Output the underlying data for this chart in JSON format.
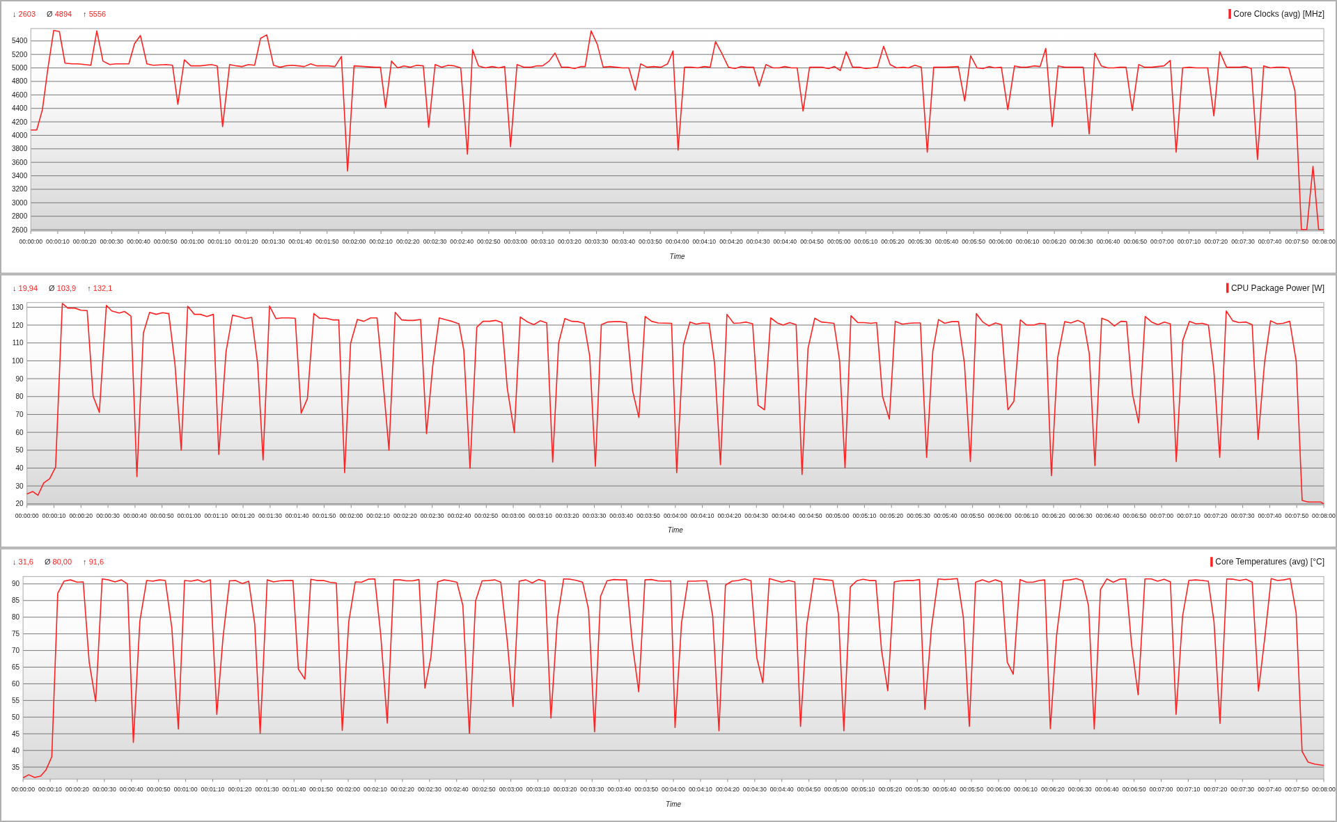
{
  "chart_data": [
    {
      "type": "line",
      "xlabel": "Time",
      "legend": "top right",
      "grid": "y",
      "annotations": [
        "↓ 2603",
        "Ø 4894",
        "↑ 5556"
      ],
      "xlim": [
        0,
        480
      ],
      "ylim": [
        2580,
        5584
      ],
      "yticks": [
        2600,
        2800,
        3000,
        3200,
        3400,
        3600,
        3800,
        4000,
        4200,
        4400,
        4600,
        4800,
        5000,
        5200,
        5400
      ],
      "xticks": [
        {
          "value": 0,
          "label": "00:00:00"
        },
        {
          "value": 10,
          "label": "00:00:10"
        },
        {
          "value": 20,
          "label": "00:00:20"
        },
        {
          "value": 30,
          "label": "00:00:30"
        },
        {
          "value": 40,
          "label": "00:00:40"
        },
        {
          "value": 50,
          "label": "00:00:50"
        },
        {
          "value": 60,
          "label": "00:01:00"
        },
        {
          "value": 70,
          "label": "00:01:10"
        },
        {
          "value": 80,
          "label": "00:01:20"
        },
        {
          "value": 90,
          "label": "00:01:30"
        },
        {
          "value": 100,
          "label": "00:01:40"
        },
        {
          "value": 110,
          "label": "00:01:50"
        },
        {
          "value": 120,
          "label": "00:02:00"
        },
        {
          "value": 130,
          "label": "00:02:10"
        },
        {
          "value": 140,
          "label": "00:02:20"
        },
        {
          "value": 150,
          "label": "00:02:30"
        },
        {
          "value": 160,
          "label": "00:02:40"
        },
        {
          "value": 170,
          "label": "00:02:50"
        },
        {
          "value": 180,
          "label": "00:03:00"
        },
        {
          "value": 190,
          "label": "00:03:10"
        },
        {
          "value": 200,
          "label": "00:03:20"
        },
        {
          "value": 210,
          "label": "00:03:30"
        },
        {
          "value": 220,
          "label": "00:03:40"
        },
        {
          "value": 230,
          "label": "00:03:50"
        },
        {
          "value": 240,
          "label": "00:04:00"
        },
        {
          "value": 250,
          "label": "00:04:10"
        },
        {
          "value": 260,
          "label": "00:04:20"
        },
        {
          "value": 270,
          "label": "00:04:30"
        },
        {
          "value": 280,
          "label": "00:04:40"
        },
        {
          "value": 290,
          "label": "00:04:50"
        },
        {
          "value": 300,
          "label": "00:05:00"
        },
        {
          "value": 310,
          "label": "00:05:10"
        },
        {
          "value": 320,
          "label": "00:05:20"
        },
        {
          "value": 330,
          "label": "00:05:30"
        },
        {
          "value": 340,
          "label": "00:05:40"
        },
        {
          "value": 350,
          "label": "00:05:50"
        },
        {
          "value": 360,
          "label": "00:06:00"
        },
        {
          "value": 370,
          "label": "00:06:10"
        },
        {
          "value": 380,
          "label": "00:06:20"
        },
        {
          "value": 390,
          "label": "00:06:30"
        },
        {
          "value": 400,
          "label": "00:06:40"
        },
        {
          "value": 410,
          "label": "00:06:50"
        },
        {
          "value": 420,
          "label": "00:07:00"
        },
        {
          "value": 430,
          "label": "00:07:10"
        },
        {
          "value": 440,
          "label": "00:07:20"
        },
        {
          "value": 450,
          "label": "00:07:30"
        },
        {
          "value": 460,
          "label": "00:07:40"
        },
        {
          "value": 470,
          "label": "00:07:50"
        },
        {
          "value": 480,
          "label": "00:08:00"
        }
      ],
      "series": [
        {
          "name": "Core Clocks (avg) [MHz]",
          "color": "#ff2020",
          "x": [
            0,
            2.2,
            4.3,
            6.3,
            8.5,
            10.6,
            12.7,
            15.4,
            17.7,
            22.3,
            24.5,
            26.8,
            29.3,
            31.5,
            36.4,
            38.5,
            40.7,
            43.1,
            45.4,
            50.2,
            52.6,
            54.6,
            57,
            59.4,
            62.9,
            67,
            69.2,
            71.2,
            73.8,
            76.3,
            78.4,
            80.8,
            83.1,
            85.3,
            87.6,
            90.1,
            92.5,
            94.5,
            96.9,
            99.3,
            101.5,
            103.9,
            106.2,
            110.4,
            112.9,
            115.3,
            117.6,
            120,
            127.8,
            129.8,
            131.7,
            133.9,
            136.2,
            138.5,
            140.9,
            143.3,
            145.7,
            147.7,
            150.1,
            152.5,
            155,
            157.2,
            159.6,
            162.1,
            164,
            166.2,
            168.8,
            171.3,
            173.7,
            175.9,
            178.1,
            180.5,
            183,
            185.6,
            187.8,
            190,
            192.4,
            194.6,
            197,
            199.5,
            201.9,
            204.1,
            205.8,
            208,
            210.3,
            212.5,
            214.9,
            217.4,
            219.6,
            222,
            224.4,
            226.4,
            228.8,
            231.2,
            233.9,
            236.4,
            238.4,
            240.3,
            242.7,
            245.2,
            247.6,
            250,
            252.2,
            254.2,
            256.6,
            259,
            261.4,
            263.6,
            266,
            268.3,
            270.4,
            272.9,
            275.5,
            277.8,
            279.9,
            282.3,
            284.5,
            286.7,
            289.1,
            291.5,
            293.7,
            296.1,
            298.4,
            300.5,
            302.7,
            305.1,
            307.6,
            310,
            312.2,
            314.3,
            316.6,
            319,
            321.4,
            323.8,
            325.8,
            328.2,
            330.6,
            332.8,
            335.2,
            339.9,
            344.3,
            346.7,
            348.9,
            351.3,
            353.5,
            355.7,
            357.8,
            360.3,
            362.7,
            365.2,
            367.5,
            369.8,
            372.4,
            374.7,
            376.8,
            379.2,
            381.4,
            383.8,
            386.3,
            388.5,
            390.7,
            392.9,
            395,
            397.4,
            399.8,
            402.1,
            404.2,
            406.6,
            408.9,
            411.3,
            413.5,
            416.1,
            418.3,
            420.7,
            423,
            425.2,
            427.6,
            430.2,
            432.5,
            434.7,
            436.9,
            439.2,
            441.4,
            443.9,
            446.3,
            448.8,
            451,
            453.1,
            455.4,
            457.7,
            460.1,
            462.5,
            464.8,
            467,
            469.3,
            471.7,
            473.7,
            476,
            478.1,
            480
          ],
          "values": [
            4080,
            4080,
            4380,
            4980,
            5556,
            5540,
            5070,
            5060,
            5060,
            5040,
            5550,
            5100,
            5050,
            5060,
            5060,
            5360,
            5480,
            5060,
            5040,
            5050,
            5040,
            4460,
            5120,
            5030,
            5030,
            5050,
            5030,
            4130,
            5050,
            5030,
            5020,
            5050,
            5040,
            5440,
            5490,
            5040,
            5010,
            5030,
            5040,
            5030,
            5020,
            5060,
            5030,
            5030,
            5020,
            5170,
            3470,
            5030,
            5010,
            5010,
            4410,
            5100,
            5000,
            5030,
            5010,
            5040,
            5030,
            4120,
            5050,
            5010,
            5040,
            5030,
            5000,
            3720,
            5270,
            5030,
            5000,
            5020,
            5000,
            5020,
            3830,
            5050,
            5010,
            5010,
            5030,
            5030,
            5100,
            5220,
            5010,
            5010,
            4990,
            5020,
            5020,
            5550,
            5350,
            5010,
            5020,
            5010,
            5000,
            5000,
            4670,
            5060,
            5010,
            5020,
            5010,
            5060,
            5250,
            3780,
            5010,
            5010,
            5000,
            5020,
            5010,
            5390,
            5210,
            5010,
            4990,
            5020,
            5010,
            5010,
            4730,
            5050,
            5000,
            5000,
            5020,
            5000,
            5000,
            4360,
            5010,
            5010,
            5010,
            4990,
            5020,
            4960,
            5240,
            5010,
            5010,
            4990,
            5000,
            5010,
            5320,
            5050,
            5000,
            5010,
            5000,
            5040,
            5010,
            3750,
            5010,
            5010,
            5020,
            4510,
            5180,
            5000,
            4990,
            5020,
            5000,
            5010,
            4380,
            5030,
            5010,
            5010,
            5030,
            5020,
            5290,
            4130,
            5030,
            5010,
            5010,
            5010,
            5010,
            4020,
            5220,
            5030,
            5000,
            5000,
            5010,
            5010,
            4370,
            5050,
            5010,
            5010,
            5020,
            5030,
            5110,
            3750,
            5000,
            5010,
            5000,
            5000,
            5000,
            4290,
            5240,
            5010,
            5010,
            5010,
            5020,
            4990,
            3640,
            5030,
            5000,
            5010,
            5010,
            5000,
            4660,
            2603,
            2603,
            3540,
            2603,
            2603
          ]
        }
      ]
    },
    {
      "type": "line",
      "xlabel": "Time",
      "legend": "top right",
      "grid": "y",
      "annotations": [
        "↓ 19,94",
        "Ø 103,9",
        "↑ 132,1"
      ],
      "xlim": [
        0,
        480
      ],
      "ylim": [
        19.3,
        132.6
      ],
      "yticks": [
        20,
        30,
        40,
        50,
        60,
        70,
        80,
        90,
        100,
        110,
        120,
        130
      ],
      "xticks": [
        {
          "value": 0,
          "label": "00:00:00"
        },
        {
          "value": 10,
          "label": "00:00:10"
        },
        {
          "value": 20,
          "label": "00:00:20"
        },
        {
          "value": 30,
          "label": "00:00:30"
        },
        {
          "value": 40,
          "label": "00:00:40"
        },
        {
          "value": 50,
          "label": "00:00:50"
        },
        {
          "value": 60,
          "label": "00:01:00"
        },
        {
          "value": 70,
          "label": "00:01:10"
        },
        {
          "value": 80,
          "label": "00:01:20"
        },
        {
          "value": 90,
          "label": "00:01:30"
        },
        {
          "value": 100,
          "label": "00:01:40"
        },
        {
          "value": 110,
          "label": "00:01:50"
        },
        {
          "value": 120,
          "label": "00:02:00"
        },
        {
          "value": 130,
          "label": "00:02:10"
        },
        {
          "value": 140,
          "label": "00:02:20"
        },
        {
          "value": 150,
          "label": "00:02:30"
        },
        {
          "value": 160,
          "label": "00:02:40"
        },
        {
          "value": 170,
          "label": "00:02:50"
        },
        {
          "value": 180,
          "label": "00:03:00"
        },
        {
          "value": 190,
          "label": "00:03:10"
        },
        {
          "value": 200,
          "label": "00:03:20"
        },
        {
          "value": 210,
          "label": "00:03:30"
        },
        {
          "value": 220,
          "label": "00:03:40"
        },
        {
          "value": 230,
          "label": "00:03:50"
        },
        {
          "value": 240,
          "label": "00:04:00"
        },
        {
          "value": 250,
          "label": "00:04:10"
        },
        {
          "value": 260,
          "label": "00:04:20"
        },
        {
          "value": 270,
          "label": "00:04:30"
        },
        {
          "value": 280,
          "label": "00:04:40"
        },
        {
          "value": 290,
          "label": "00:04:50"
        },
        {
          "value": 300,
          "label": "00:05:00"
        },
        {
          "value": 310,
          "label": "00:05:10"
        },
        {
          "value": 320,
          "label": "00:05:20"
        },
        {
          "value": 330,
          "label": "00:05:30"
        },
        {
          "value": 340,
          "label": "00:05:40"
        },
        {
          "value": 350,
          "label": "00:05:50"
        },
        {
          "value": 360,
          "label": "00:06:00"
        },
        {
          "value": 370,
          "label": "00:06:10"
        },
        {
          "value": 380,
          "label": "00:06:20"
        },
        {
          "value": 390,
          "label": "00:06:30"
        },
        {
          "value": 400,
          "label": "00:06:40"
        },
        {
          "value": 410,
          "label": "00:06:50"
        },
        {
          "value": 420,
          "label": "00:07:00"
        },
        {
          "value": 430,
          "label": "00:07:10"
        },
        {
          "value": 440,
          "label": "00:07:20"
        },
        {
          "value": 450,
          "label": "00:07:30"
        },
        {
          "value": 460,
          "label": "00:07:40"
        },
        {
          "value": 470,
          "label": "00:07:50"
        },
        {
          "value": 480,
          "label": "00:08:00"
        }
      ],
      "series": [
        {
          "name": "CPU Package Power [W]",
          "color": "#ff2020",
          "x": [
            0,
            2.1,
            4.1,
            6.2,
            8.4,
            10.6,
            13.1,
            15.1,
            17.7,
            20,
            22.3,
            24.5,
            26.8,
            29.4,
            31.4,
            34.2,
            36.1,
            38.5,
            40.7,
            43.1,
            45.4,
            47.8,
            50.2,
            52.5,
            54.8,
            57.1,
            59.5,
            62,
            64.2,
            66.6,
            69,
            71,
            73.7,
            76.1,
            78.3,
            80.8,
            83.2,
            85.4,
            87.4,
            89.8,
            92.2,
            94.2,
            96.9,
            99.3,
            101.5,
            103.8,
            106.2,
            108.4,
            110.8,
            113.1,
            115.4,
            117.6,
            119.8,
            122.3,
            124.7,
            127.2,
            129.6,
            131.6,
            134,
            136.3,
            138.7,
            141.1,
            143.1,
            145.7,
            147.9,
            150.2,
            152.6,
            155.1,
            157.3,
            159.9,
            161.7,
            164,
            166.5,
            168.8,
            171.2,
            173.5,
            175.8,
            177.8,
            180.4,
            182.6,
            185.1,
            187.6,
            190,
            192.4,
            194.6,
            196.8,
            199.1,
            201.7,
            204,
            206.2,
            208.3,
            210.4,
            212.6,
            214.9,
            217.3,
            219.7,
            221.9,
            224.2,
            226.5,
            228.8,
            231.2,
            233.6,
            238.6,
            240.5,
            243,
            245.4,
            247.7,
            250.1,
            252.5,
            254.5,
            256.7,
            259.1,
            261.6,
            264,
            266.2,
            268.6,
            270.6,
            273,
            275.3,
            277.7,
            279.9,
            282.3,
            284.7,
            286.9,
            289.1,
            291.6,
            294,
            296.3,
            298.7,
            300.8,
            302.8,
            305,
            307.5,
            309.9,
            312.3,
            314.5,
            316.7,
            319.2,
            321.4,
            324,
            326.3,
            328.5,
            330.7,
            333,
            335.3,
            337.4,
            339.7,
            342.3,
            344.8,
            347,
            349.2,
            351.4,
            353.8,
            356.1,
            358.5,
            360.7,
            363.1,
            365.3,
            367.7,
            370,
            372.7,
            374.9,
            377,
            379.2,
            381.5,
            384.1,
            386.4,
            389,
            391.2,
            393.2,
            395.3,
            397.8,
            400.2,
            402.5,
            404.9,
            407,
            409.2,
            411.5,
            413.9,
            416.3,
            418.6,
            421,
            423.2,
            425.4,
            427.8,
            430.3,
            432.7,
            435,
            437.3,
            439.3,
            441.5,
            443.9,
            446.3,
            448.6,
            451.2,
            453.5,
            455.7,
            458.1,
            460.3,
            462.7,
            464.9,
            467.4,
            469.8,
            472,
            474.2,
            478.9,
            480
          ],
          "values": [
            25.5,
            26.9,
            24.8,
            31.7,
            34.0,
            40.5,
            132.1,
            129.5,
            129.5,
            128.3,
            128.1,
            80.2,
            71.2,
            131.0,
            127.9,
            126.7,
            127.6,
            125.0,
            35.2,
            115.5,
            127.1,
            126.0,
            126.9,
            126.4,
            97.9,
            50.0,
            130.5,
            126.0,
            126.0,
            124.8,
            126.0,
            47.6,
            105.2,
            125.5,
            124.8,
            123.6,
            124.3,
            98.3,
            44.5,
            130.7,
            123.6,
            124.0,
            124.0,
            123.8,
            70.7,
            78.8,
            126.4,
            123.8,
            123.8,
            122.9,
            122.9,
            37.4,
            109.8,
            123.1,
            122.1,
            124.0,
            124.0,
            92.1,
            50.0,
            127.1,
            122.9,
            122.6,
            122.6,
            123.1,
            59.3,
            97.1,
            124.0,
            122.9,
            122.1,
            120.7,
            106.0,
            39.8,
            118.8,
            122.1,
            122.1,
            122.6,
            121.4,
            84.5,
            59.8,
            124.5,
            121.9,
            120.2,
            122.4,
            121.2,
            43.3,
            110.0,
            123.6,
            122.1,
            121.9,
            121.0,
            102.6,
            41.0,
            120.2,
            121.7,
            121.9,
            121.9,
            121.4,
            83.1,
            68.3,
            124.8,
            122.1,
            121.2,
            121.0,
            37.4,
            108.8,
            121.7,
            120.5,
            121.2,
            121.0,
            98.8,
            41.9,
            126.0,
            121.0,
            121.2,
            121.7,
            120.7,
            75.2,
            72.6,
            124.0,
            121.2,
            120.0,
            121.4,
            120.2,
            36.4,
            106.9,
            123.8,
            121.7,
            121.4,
            121.0,
            100.0,
            40.0,
            125.2,
            121.4,
            121.4,
            121.0,
            121.4,
            80.0,
            67.4,
            122.1,
            120.5,
            121.0,
            121.2,
            121.2,
            46.0,
            105.5,
            123.1,
            121.0,
            121.9,
            121.9,
            98.6,
            43.6,
            126.4,
            121.7,
            119.5,
            121.2,
            120.2,
            72.6,
            77.4,
            122.9,
            120.0,
            120.0,
            121.0,
            120.7,
            35.7,
            101.7,
            121.9,
            121.2,
            122.6,
            121.0,
            104.0,
            41.4,
            123.8,
            122.4,
            119.5,
            122.1,
            121.9,
            81.4,
            65.2,
            124.8,
            121.7,
            120.2,
            121.7,
            120.7,
            43.6,
            111.4,
            122.1,
            120.7,
            121.0,
            120.0,
            95.2,
            46.0,
            127.9,
            122.4,
            121.4,
            121.7,
            120.2,
            56.0,
            99.3,
            122.4,
            120.7,
            121.0,
            122.1,
            99.8,
            21.9,
            21.0,
            21.0,
            20.0
          ]
        }
      ]
    },
    {
      "type": "line",
      "xlabel": "Time",
      "legend": "top right",
      "grid": "y",
      "annotations": [
        "↓ 31,6",
        "Ø 80,00",
        "↑ 91,6"
      ],
      "xlim": [
        0,
        480
      ],
      "ylim": [
        31.4,
        92.2
      ],
      "yticks": [
        35,
        40,
        45,
        50,
        55,
        60,
        65,
        70,
        75,
        80,
        85,
        90
      ],
      "xticks": [
        {
          "value": 0,
          "label": "00:00:00"
        },
        {
          "value": 10,
          "label": "00:00:10"
        },
        {
          "value": 20,
          "label": "00:00:20"
        },
        {
          "value": 30,
          "label": "00:00:30"
        },
        {
          "value": 40,
          "label": "00:00:40"
        },
        {
          "value": 50,
          "label": "00:00:50"
        },
        {
          "value": 60,
          "label": "00:01:00"
        },
        {
          "value": 70,
          "label": "00:01:10"
        },
        {
          "value": 80,
          "label": "00:01:20"
        },
        {
          "value": 90,
          "label": "00:01:30"
        },
        {
          "value": 100,
          "label": "00:01:40"
        },
        {
          "value": 110,
          "label": "00:01:50"
        },
        {
          "value": 120,
          "label": "00:02:00"
        },
        {
          "value": 130,
          "label": "00:02:10"
        },
        {
          "value": 140,
          "label": "00:02:20"
        },
        {
          "value": 150,
          "label": "00:02:30"
        },
        {
          "value": 160,
          "label": "00:02:40"
        },
        {
          "value": 170,
          "label": "00:02:50"
        },
        {
          "value": 180,
          "label": "00:03:00"
        },
        {
          "value": 190,
          "label": "00:03:10"
        },
        {
          "value": 200,
          "label": "00:03:20"
        },
        {
          "value": 210,
          "label": "00:03:30"
        },
        {
          "value": 220,
          "label": "00:03:40"
        },
        {
          "value": 230,
          "label": "00:03:50"
        },
        {
          "value": 240,
          "label": "00:04:00"
        },
        {
          "value": 250,
          "label": "00:04:10"
        },
        {
          "value": 260,
          "label": "00:04:20"
        },
        {
          "value": 270,
          "label": "00:04:30"
        },
        {
          "value": 280,
          "label": "00:04:40"
        },
        {
          "value": 290,
          "label": "00:04:50"
        },
        {
          "value": 300,
          "label": "00:05:00"
        },
        {
          "value": 310,
          "label": "00:05:10"
        },
        {
          "value": 320,
          "label": "00:05:20"
        },
        {
          "value": 330,
          "label": "00:05:30"
        },
        {
          "value": 340,
          "label": "00:05:40"
        },
        {
          "value": 350,
          "label": "00:05:50"
        },
        {
          "value": 360,
          "label": "00:06:00"
        },
        {
          "value": 370,
          "label": "00:06:10"
        },
        {
          "value": 380,
          "label": "00:06:20"
        },
        {
          "value": 390,
          "label": "00:06:30"
        },
        {
          "value": 400,
          "label": "00:06:40"
        },
        {
          "value": 410,
          "label": "00:06:50"
        },
        {
          "value": 420,
          "label": "00:07:00"
        },
        {
          "value": 430,
          "label": "00:07:10"
        },
        {
          "value": 440,
          "label": "00:07:20"
        },
        {
          "value": 450,
          "label": "00:07:30"
        },
        {
          "value": 460,
          "label": "00:07:40"
        },
        {
          "value": 470,
          "label": "00:07:50"
        },
        {
          "value": 480,
          "label": "00:08:00"
        }
      ],
      "series": [
        {
          "name": "Core Temperatures (avg) [°C]",
          "color": "#ff2020",
          "x": [
            0,
            2.1,
            4.3,
            6.5,
            8.5,
            10.6,
            12.8,
            15.1,
            17.5,
            20,
            22.2,
            24.4,
            26.8,
            29.2,
            31.5,
            33.9,
            36.3,
            38.5,
            40.7,
            43.1,
            45.6,
            47.9,
            50.3,
            52.5,
            54.9,
            57.3,
            59.6,
            62,
            64.4,
            66.7,
            69.1,
            71.5,
            73.8,
            76.2,
            78.4,
            80.9,
            83.3,
            85.5,
            87.5,
            90.1,
            92.4,
            94.8,
            97.2,
            99.6,
            101.6,
            104,
            106.2,
            108.5,
            110.9,
            113.2,
            115.6,
            117.8,
            120.2,
            122.6,
            124.9,
            127.4,
            129.8,
            132,
            134.4,
            136.8,
            139.1,
            141.5,
            143.8,
            146.1,
            148.3,
            150.5,
            153,
            155.4,
            157.7,
            160.1,
            162.3,
            164.7,
            167,
            169.4,
            171.8,
            174.1,
            176.3,
            178.7,
            180.8,
            183.1,
            185.5,
            187.9,
            190.2,
            192.6,
            194.8,
            197.2,
            199.5,
            201.9,
            204.3,
            206.5,
            208.7,
            210.9,
            213.1,
            215.5,
            218,
            220.3,
            222.7,
            224.8,
            227.2,
            229.5,
            231.9,
            234.2,
            236.6,
            239,
            240.6,
            243,
            245.3,
            247.7,
            250.1,
            252.3,
            254.5,
            256.8,
            259.2,
            261.6,
            263.9,
            266.3,
            268.6,
            270.8,
            273,
            275.4,
            277.8,
            280.1,
            282.5,
            284.8,
            286.9,
            289.2,
            291.8,
            294.1,
            296.5,
            298.8,
            300.9,
            302.9,
            305.3,
            307.6,
            310,
            312.4,
            314.7,
            316.8,
            319.1,
            321.5,
            323.8,
            326.2,
            328.6,
            330.8,
            332.8,
            335.2,
            337.7,
            340,
            342.4,
            344.8,
            347,
            349.2,
            351.5,
            354,
            356.4,
            358.8,
            361.1,
            363.2,
            365.4,
            367.9,
            370.3,
            372.6,
            375,
            377,
            379.1,
            381.4,
            383.9,
            386.3,
            388.7,
            391,
            393.2,
            395.3,
            397.6,
            400,
            402.3,
            404.7,
            406.9,
            409.1,
            411.5,
            414,
            416.3,
            418.7,
            421.1,
            423.4,
            425.5,
            427.9,
            430.2,
            432.7,
            435.1,
            437.4,
            439.5,
            441.7,
            444.2,
            446.6,
            448.9,
            451.3,
            453.6,
            455.9,
            458.2,
            460.6,
            462.9,
            465.2,
            467.6,
            469.8,
            472,
            474.2,
            476.6,
            480
          ],
          "values": [
            31.8,
            32.7,
            31.9,
            32.3,
            34.2,
            38.1,
            87.2,
            90.8,
            91.2,
            90.5,
            90.6,
            66.5,
            54.7,
            91.5,
            91.2,
            90.6,
            91.2,
            90.0,
            42.4,
            78.8,
            91.0,
            90.8,
            91.2,
            91.0,
            76.8,
            46.4,
            91.0,
            90.8,
            91.2,
            90.5,
            91.2,
            50.8,
            74.0,
            90.9,
            91.0,
            90.1,
            90.8,
            77.9,
            45.1,
            91.2,
            90.6,
            90.9,
            91.0,
            91.0,
            64.4,
            61.4,
            91.4,
            91.0,
            91.0,
            90.5,
            90.3,
            46.0,
            78.7,
            90.6,
            90.5,
            91.4,
            91.5,
            74.6,
            48.2,
            91.2,
            91.2,
            90.9,
            90.9,
            91.3,
            58.7,
            67.9,
            90.6,
            91.2,
            90.9,
            90.5,
            83.5,
            45.1,
            84.9,
            90.9,
            91.0,
            91.2,
            90.5,
            72.6,
            53.2,
            90.8,
            91.2,
            90.3,
            91.3,
            90.8,
            49.7,
            79.6,
            91.5,
            91.4,
            91.0,
            90.5,
            82.2,
            45.6,
            86.2,
            90.9,
            91.3,
            91.2,
            91.2,
            72.3,
            57.6,
            91.2,
            91.3,
            90.9,
            90.8,
            90.9,
            46.9,
            78.3,
            90.8,
            90.8,
            90.9,
            90.9,
            80.3,
            45.9,
            89.6,
            90.8,
            91.0,
            91.5,
            90.9,
            67.7,
            60.3,
            91.6,
            91.0,
            90.5,
            91.0,
            90.6,
            47.2,
            77.6,
            91.6,
            91.4,
            91.2,
            91.0,
            80.9,
            45.9,
            89.1,
            90.9,
            91.4,
            91.0,
            91.0,
            70.1,
            57.9,
            90.6,
            90.9,
            91.0,
            91.0,
            91.3,
            52.3,
            76.7,
            91.5,
            91.3,
            91.4,
            91.6,
            79.9,
            47.2,
            90.5,
            91.2,
            90.5,
            91.2,
            90.6,
            66.5,
            62.9,
            91.3,
            90.5,
            90.5,
            91.0,
            91.2,
            46.5,
            74.5,
            91.0,
            91.2,
            91.6,
            90.9,
            83.3,
            46.4,
            88.3,
            91.5,
            90.5,
            91.4,
            91.5,
            71.5,
            56.7,
            91.5,
            91.5,
            90.8,
            91.4,
            90.6,
            50.8,
            80.3,
            91.0,
            91.2,
            91.0,
            90.8,
            78.5,
            48.1,
            91.5,
            91.4,
            91.0,
            91.4,
            90.5,
            57.8,
            73.6,
            91.6,
            91.0,
            91.2,
            91.6,
            81.3,
            39.7,
            36.5,
            35.9,
            35.5
          ]
        }
      ]
    }
  ]
}
